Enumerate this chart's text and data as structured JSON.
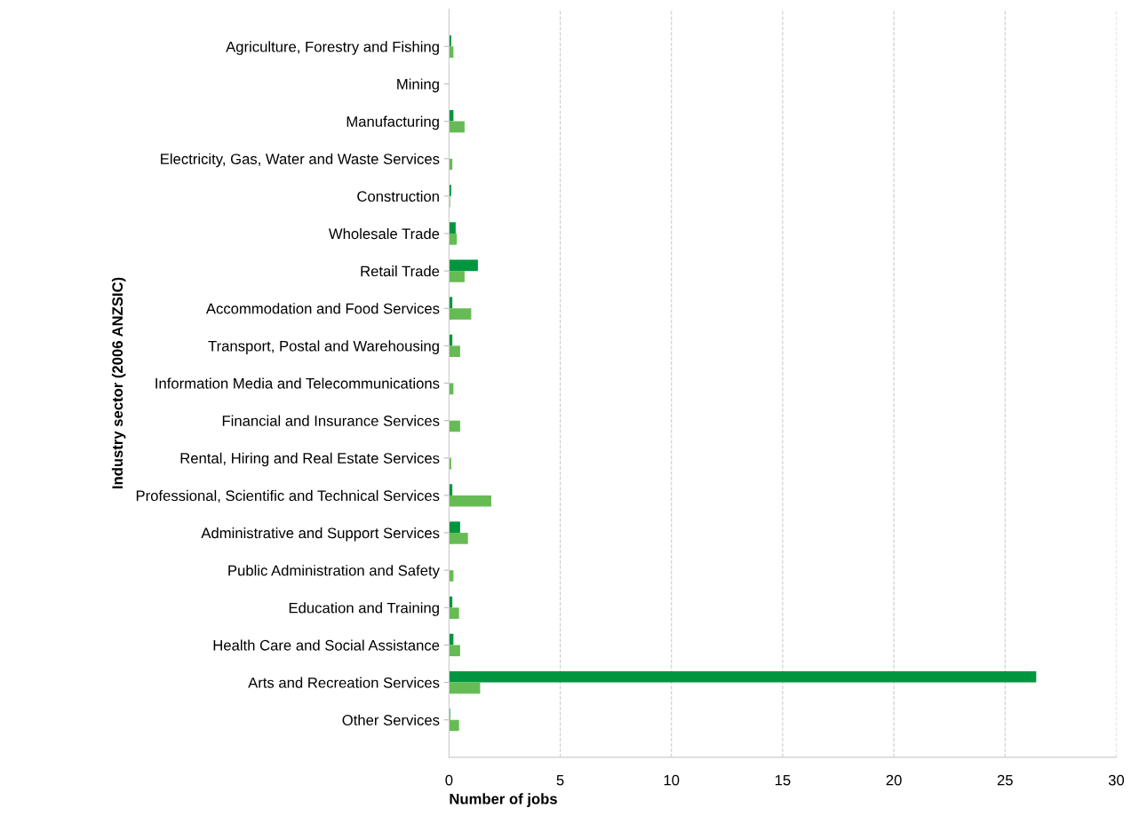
{
  "chart_data": {
    "type": "bar",
    "orientation": "horizontal",
    "xlabel": "Number of jobs",
    "ylabel": "Industry sector (2006 ANZSIC)",
    "categories": [
      "Agriculture, Forestry and Fishing",
      "Mining",
      "Manufacturing",
      "Electricity, Gas, Water and Waste Services",
      "Construction",
      "Wholesale Trade",
      "Retail Trade",
      "Accommodation and Food Services",
      "Transport, Postal and Warehousing",
      "Information Media and Telecommunications",
      "Financial and Insurance Services",
      "Rental, Hiring and Real Estate Services",
      "Professional, Scientific and Technical Services",
      "Administrative and Support Services",
      "Public Administration and Safety",
      "Education and Training",
      "Health Care and Social Assistance",
      "Arts and Recreation Services",
      "Other Services"
    ],
    "series": [
      {
        "color": "#009640",
        "values": [
          0.1,
          0,
          0.2,
          0,
          0.1,
          0.3,
          1.3,
          0.15,
          0.15,
          0,
          0,
          0,
          0.15,
          0.5,
          0,
          0.15,
          0.2,
          26.4,
          0.05
        ]
      },
      {
        "color": "#66bb55",
        "values": [
          0.2,
          0,
          0.7,
          0.15,
          0.05,
          0.35,
          0.7,
          1.0,
          0.5,
          0.2,
          0.5,
          0.1,
          1.9,
          0.85,
          0.2,
          0.45,
          0.5,
          1.4,
          0.45
        ]
      }
    ],
    "xlim": [
      0,
      30
    ],
    "xticks": [
      0,
      5,
      10,
      15,
      20,
      25,
      30
    ],
    "grid": "x",
    "legend": false
  }
}
